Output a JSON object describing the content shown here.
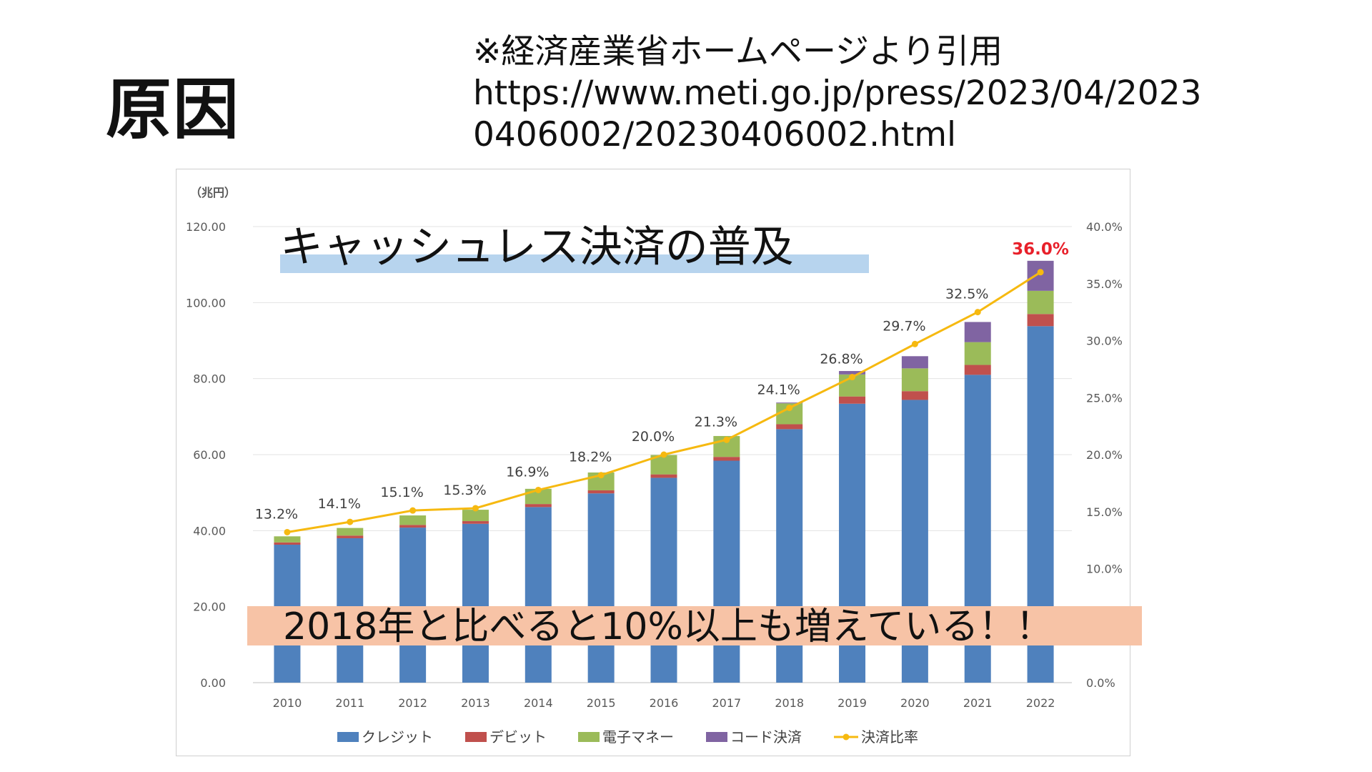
{
  "slide": {
    "title": "原因",
    "source_lines": [
      "※経済産業省ホームページより引用",
      "https://www.meti.go.jp/press/2023/04/2023",
      "0406002/20230406002.html"
    ],
    "overlay_title": "キャッシュレス決済の普及",
    "callout": "2018年と比べると10%以上も増えている！！",
    "colors": {
      "overlay_title_bg": "#b7d4ee",
      "callout_bg": "#f7c3a6"
    }
  },
  "chart_data": {
    "type": "bar",
    "stacked": true,
    "unit_label": "（兆円）",
    "categories": [
      "2010",
      "2011",
      "2012",
      "2013",
      "2014",
      "2015",
      "2016",
      "2017",
      "2018",
      "2019",
      "2020",
      "2021",
      "2022"
    ],
    "series": [
      {
        "name": "クレジット",
        "color": "#4f81bd",
        "values": [
          36.3,
          38.0,
          40.8,
          41.8,
          46.2,
          49.8,
          53.9,
          58.4,
          66.7,
          73.4,
          74.4,
          81.0,
          93.8
        ]
      },
      {
        "name": "デビット",
        "color": "#c0504d",
        "values": [
          0.6,
          0.7,
          0.7,
          0.7,
          0.8,
          0.8,
          0.9,
          1.0,
          1.3,
          1.9,
          2.3,
          2.6,
          3.2
        ]
      },
      {
        "name": "電子マネー",
        "color": "#9bbb59",
        "values": [
          1.6,
          2.0,
          2.5,
          3.0,
          4.0,
          4.7,
          5.1,
          5.5,
          5.5,
          5.8,
          6.0,
          6.0,
          6.1
        ]
      },
      {
        "name": "コード決済",
        "color": "#8064a2",
        "values": [
          0,
          0,
          0,
          0,
          0,
          0,
          0,
          0,
          0.2,
          0.9,
          3.2,
          5.3,
          7.9
        ]
      }
    ],
    "line": {
      "name": "決済比率",
      "color": "#f6b910",
      "values": [
        13.2,
        14.1,
        15.1,
        15.3,
        16.9,
        18.2,
        20.0,
        21.3,
        24.1,
        26.8,
        29.7,
        32.5,
        36.0
      ],
      "labels": [
        "13.2%",
        "14.1%",
        "15.1%",
        "15.3%",
        "16.9%",
        "18.2%",
        "20.0%",
        "21.3%",
        "24.1%",
        "26.8%",
        "29.7%",
        "32.5%",
        "36.0%"
      ],
      "highlight_index": 12,
      "highlight_color": "#e8202a"
    },
    "y_left": {
      "min": 0,
      "max": 120,
      "ticks": [
        "0.00",
        "20.00",
        "40.00",
        "60.00",
        "80.00",
        "100.00",
        "120.00"
      ]
    },
    "y_right": {
      "min": 0,
      "max": 40,
      "ticks": [
        "0.0%",
        "10.0%",
        "15.0%",
        "20.0%",
        "25.0%",
        "30.0%",
        "35.0%",
        "40.0%"
      ],
      "tick_values": [
        0,
        10,
        15,
        20,
        25,
        30,
        35,
        40
      ]
    },
    "grid": true,
    "legend_position": "bottom"
  }
}
